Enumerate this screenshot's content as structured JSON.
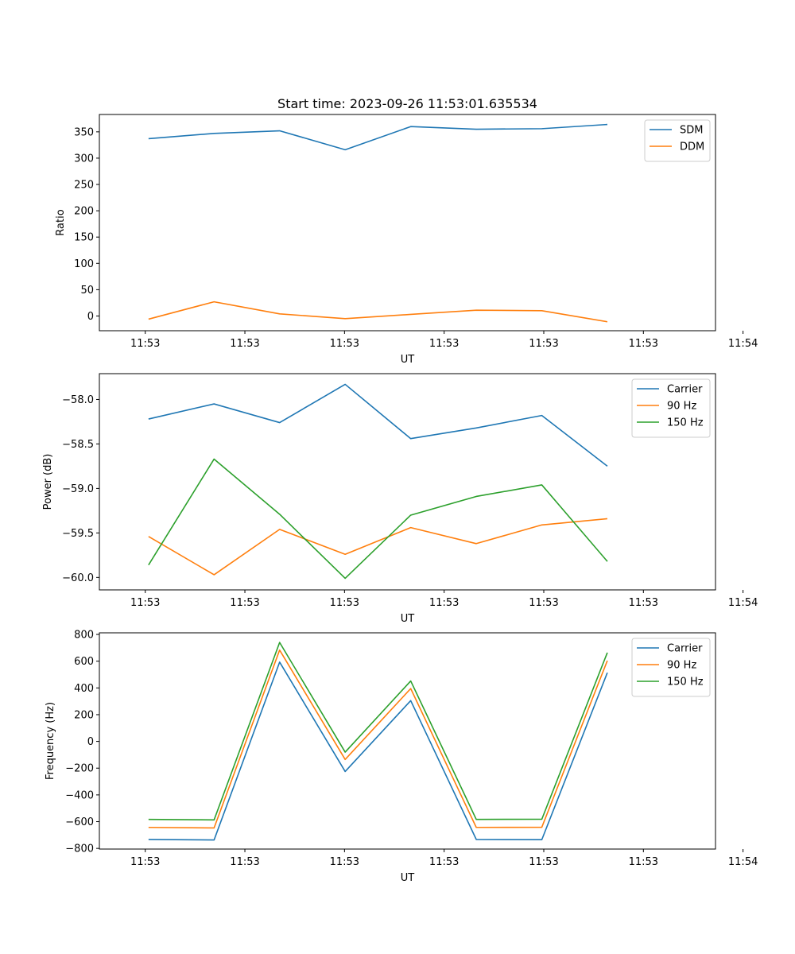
{
  "chart_data": [
    {
      "type": "line",
      "title": "Start time: 2023-09-26 11:53:01.635534",
      "xlabel": "UT",
      "ylabel": "Ratio",
      "xlim": [
        -0.7,
        8.7
      ],
      "ylim": [
        -28,
        383
      ],
      "x": [
        0.05,
        1.05,
        2.05,
        3.05,
        4.05,
        5.05,
        6.05,
        7.05
      ],
      "xticks": [
        0.0,
        1.52,
        3.04,
        4.56,
        6.08,
        7.6,
        9.12
      ],
      "xtick_labels": [
        "11:53",
        "11:53",
        "11:53",
        "11:53",
        "11:53",
        "11:53",
        "11:54"
      ],
      "yticks": [
        0,
        50,
        100,
        150,
        200,
        250,
        300,
        350
      ],
      "ytick_labels": [
        "0",
        "50",
        "100",
        "150",
        "200",
        "250",
        "300",
        "350"
      ],
      "legend_position": "top-right",
      "series": [
        {
          "name": "SDM",
          "color": "#1f77b4",
          "values": [
            337,
            347,
            352,
            316,
            360,
            355,
            356,
            364
          ]
        },
        {
          "name": "DDM",
          "color": "#ff7f0e",
          "values": [
            -6,
            27,
            4,
            -5,
            3,
            11,
            10,
            -11
          ]
        }
      ]
    },
    {
      "type": "line",
      "title": "",
      "xlabel": "UT",
      "ylabel": "Power (dB)",
      "xlim": [
        -0.7,
        8.7
      ],
      "ylim": [
        -60.14,
        -57.71
      ],
      "x": [
        0.05,
        1.05,
        2.05,
        3.05,
        4.05,
        5.05,
        6.05,
        7.05
      ],
      "xticks": [
        0.0,
        1.52,
        3.04,
        4.56,
        6.08,
        7.6,
        9.12
      ],
      "xtick_labels": [
        "11:53",
        "11:53",
        "11:53",
        "11:53",
        "11:53",
        "11:53",
        "11:54"
      ],
      "yticks": [
        -60.0,
        -59.5,
        -59.0,
        -58.5,
        -58.0
      ],
      "ytick_labels": [
        "−60.0",
        "−59.5",
        "−59.0",
        "−58.5",
        "−58.0"
      ],
      "legend_position": "top-right",
      "series": [
        {
          "name": "Carrier",
          "color": "#1f77b4",
          "values": [
            -58.22,
            -58.05,
            -58.26,
            -57.83,
            -58.44,
            -58.32,
            -58.18,
            -58.75
          ]
        },
        {
          "name": "90 Hz",
          "color": "#ff7f0e",
          "values": [
            -59.54,
            -59.97,
            -59.46,
            -59.74,
            -59.44,
            -59.62,
            -59.41,
            -59.34
          ]
        },
        {
          "name": "150 Hz",
          "color": "#2ca02c",
          "values": [
            -59.86,
            -58.67,
            -59.29,
            -60.01,
            -59.3,
            -59.09,
            -58.96,
            -59.82
          ]
        }
      ]
    },
    {
      "type": "line",
      "title": "",
      "xlabel": "UT",
      "ylabel": "Frequency (Hz)",
      "xlim": [
        -0.7,
        8.7
      ],
      "ylim": [
        -805,
        812
      ],
      "x": [
        0.05,
        1.05,
        2.05,
        3.05,
        4.05,
        5.05,
        6.05,
        7.05
      ],
      "xticks": [
        0.0,
        1.52,
        3.04,
        4.56,
        6.08,
        7.6,
        9.12
      ],
      "xtick_labels": [
        "11:53",
        "11:53",
        "11:53",
        "11:53",
        "11:53",
        "11:53",
        "11:54"
      ],
      "yticks": [
        -800,
        -600,
        -400,
        -200,
        0,
        200,
        400,
        600,
        800
      ],
      "ytick_labels": [
        "−800",
        "−600",
        "−400",
        "−200",
        "0",
        "200",
        "400",
        "600",
        "800"
      ],
      "legend_position": "top-right",
      "series": [
        {
          "name": "Carrier",
          "color": "#1f77b4",
          "values": [
            -733,
            -737,
            593,
            -225,
            305,
            -733,
            -735,
            514
          ]
        },
        {
          "name": "90 Hz",
          "color": "#ff7f0e",
          "values": [
            -643,
            -647,
            683,
            -135,
            395,
            -643,
            -642,
            604
          ]
        },
        {
          "name": "150 Hz",
          "color": "#2ca02c",
          "values": [
            -583,
            -587,
            740,
            -80,
            452,
            -583,
            -582,
            664
          ]
        }
      ]
    }
  ]
}
